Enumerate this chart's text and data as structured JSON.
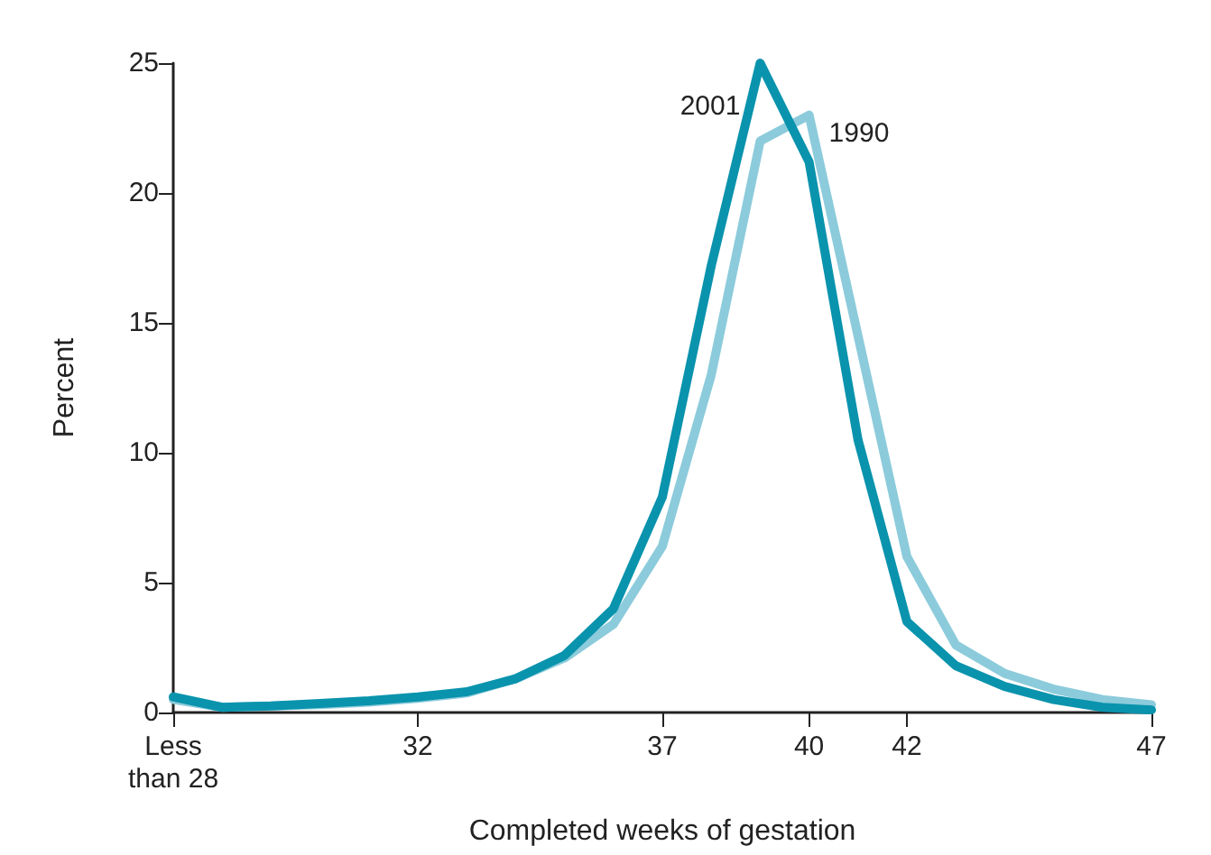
{
  "chart_data": {
    "type": "line",
    "xlabel": "Completed weeks of gestation",
    "ylabel": "Percent",
    "categories": [
      "Less\nthan 28",
      null,
      null,
      null,
      null,
      "32",
      null,
      null,
      null,
      null,
      "37",
      null,
      null,
      "40",
      null,
      "42",
      null,
      null,
      null,
      null,
      "47"
    ],
    "series": [
      {
        "name": "1990",
        "color": "#8ccbdb",
        "values": [
          0.5,
          0.2,
          0.25,
          0.3,
          0.4,
          0.55,
          0.75,
          1.3,
          2.1,
          3.4,
          6.4,
          13.0,
          22.0,
          23.0,
          14.5,
          6.0,
          2.6,
          1.5,
          0.9,
          0.5,
          0.3
        ]
      },
      {
        "name": "2001",
        "color": "#0a93ad",
        "values": [
          0.6,
          0.2,
          0.25,
          0.35,
          0.45,
          0.6,
          0.8,
          1.3,
          2.2,
          4.0,
          8.3,
          17.2,
          25.0,
          21.2,
          10.5,
          3.5,
          1.8,
          1.0,
          0.5,
          0.2,
          0.1
        ]
      }
    ],
    "ylim": [
      0,
      25
    ],
    "yticks": [
      0,
      5,
      10,
      15,
      20,
      25
    ],
    "grid": false,
    "legend": false,
    "marker": "none",
    "line_style": "solid"
  }
}
